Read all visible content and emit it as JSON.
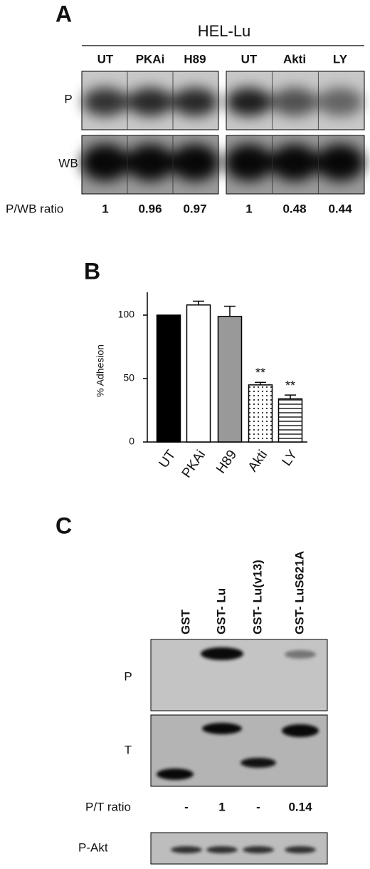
{
  "panel_a": {
    "label": "A",
    "group": "HEL-Lu",
    "lanes": [
      "UT",
      "PKAi",
      "H89",
      "UT",
      "Akti",
      "LY"
    ],
    "rows": [
      "P",
      "WB"
    ],
    "ratio_label": "P/WB ratio",
    "ratios": [
      1,
      0.96,
      0.97,
      1,
      0.48,
      0.44
    ]
  },
  "chart_data": {
    "type": "bar",
    "label": "B",
    "ylabel": "% Adhesion",
    "categories": [
      "UT",
      "PKAi",
      "H89",
      "Akti",
      "LY"
    ],
    "values": [
      100,
      108,
      99,
      45,
      34
    ],
    "errors": [
      0,
      3,
      8,
      2,
      3
    ],
    "colors": [
      "#000000",
      "#ffffff",
      "#999999",
      "#ffffff",
      "#ffffff"
    ],
    "patterns": [
      "solid",
      "solid",
      "solid",
      "dots",
      "stripes"
    ],
    "annotations": [
      null,
      null,
      null,
      "**",
      "**"
    ],
    "ylim": [
      0,
      118
    ],
    "yticks": [
      0,
      50,
      100
    ]
  },
  "panel_c": {
    "label": "C",
    "lanes": [
      "GST",
      "GST- Lu",
      "GST- Lu(v13)",
      "GST- LuS621A"
    ],
    "rows": [
      "P",
      "T"
    ],
    "ratio_label": "P/T ratio",
    "ratios": [
      "-",
      1,
      "-",
      0.14
    ],
    "extra_row": "P-Akt"
  }
}
